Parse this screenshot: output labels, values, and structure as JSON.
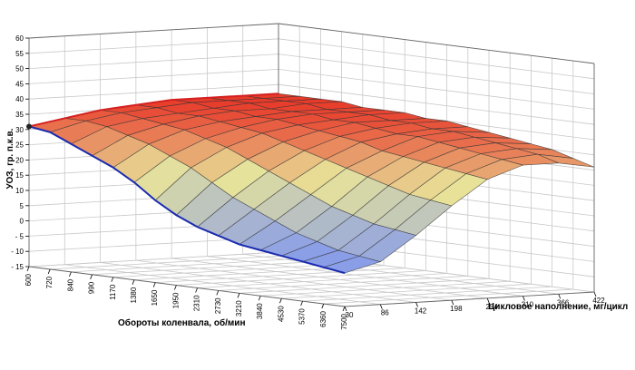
{
  "chart_data": {
    "type": "surface3d",
    "title": "",
    "zlabel": "УОЗ, гр. п.к.в.",
    "xlabel": "Обороты коленвала, об/мин",
    "ylabel": "Цикловое наполнение, мг/цикл",
    "z_ticks": [
      "60",
      "55",
      "50",
      "45",
      "40",
      "35",
      "30",
      "25",
      "20",
      "15",
      "10",
      "5",
      "0",
      "- 5",
      "- 10",
      "- 15"
    ],
    "zlim": [
      -15,
      60
    ],
    "rpm_ticks": [
      "600",
      "720",
      "840",
      "990",
      "1170",
      "1380",
      "1650",
      "1950",
      "2310",
      "2730",
      "3210",
      "3840",
      "4530",
      "5370",
      "6360",
      "7500"
    ],
    "fill_ticks": [
      "30",
      "86",
      "142",
      "198",
      "254",
      "310",
      "366",
      "422"
    ],
    "grid": true,
    "colors": {
      "high": "#e83a2a",
      "mid": "#e8e49a",
      "low": "#8a9ee8",
      "edge_high": "#d42020",
      "edge_low": "#1a2ab0"
    },
    "z_values": [
      [
        31,
        30,
        27,
        24,
        21,
        17,
        12,
        8,
        5,
        3,
        1,
        0,
        -1,
        -2,
        -3,
        -4
      ],
      [
        33,
        33,
        32,
        30,
        28,
        25,
        22,
        18,
        14,
        11,
        8,
        5,
        3,
        1,
        0,
        -1
      ],
      [
        35,
        35,
        34,
        33,
        32,
        30,
        28,
        25,
        22,
        19,
        16,
        13,
        11,
        9,
        8,
        7
      ],
      [
        36,
        36,
        35,
        35,
        34,
        33,
        32,
        30,
        28,
        26,
        24,
        22,
        20,
        18,
        17,
        16
      ],
      [
        37,
        37,
        36,
        36,
        35,
        35,
        34,
        33,
        32,
        31,
        29,
        28,
        27,
        26,
        25,
        24
      ],
      [
        37,
        37,
        37,
        36,
        36,
        36,
        35,
        35,
        34,
        33,
        33,
        32,
        31,
        30,
        29,
        28
      ],
      [
        37,
        37,
        37,
        37,
        36,
        36,
        36,
        35,
        35,
        34,
        34,
        33,
        32,
        31,
        30,
        28
      ],
      [
        37,
        37,
        37,
        37,
        36,
        36,
        36,
        35,
        35,
        34,
        33,
        32,
        31,
        30,
        28,
        26
      ]
    ]
  }
}
